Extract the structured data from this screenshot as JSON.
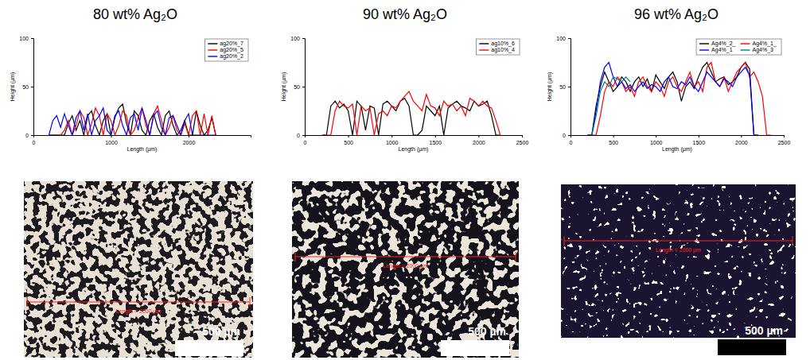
{
  "chart_data": [
    {
      "type": "line",
      "title": "80 wt% Ag₂O",
      "xlabel": "Length (µm)",
      "ylabel": "Height (µm)",
      "x": [
        200,
        250,
        300,
        350,
        400,
        450,
        500,
        550,
        600,
        650,
        700,
        750,
        800,
        850,
        900,
        950,
        1000,
        1050,
        1100,
        1150,
        1200,
        1250,
        1300,
        1350,
        1400,
        1450,
        1500,
        1550,
        1600,
        1650,
        1700,
        1750,
        1800,
        1850,
        1900,
        1950,
        2000,
        2050,
        2100,
        2150,
        2200,
        2250,
        2300,
        2350
      ],
      "series": [
        {
          "name": "ag20%_7",
          "color": "#000000",
          "values": [
            0,
            0,
            0,
            0,
            0,
            12,
            20,
            5,
            15,
            0,
            20,
            25,
            10,
            0,
            15,
            22,
            0,
            18,
            28,
            32,
            12,
            0,
            25,
            20,
            5,
            0,
            15,
            22,
            8,
            0,
            20,
            25,
            10,
            0,
            5,
            15,
            0,
            0,
            25,
            10,
            0,
            5,
            18,
            0
          ]
        },
        {
          "name": "ag20%_5",
          "color": "#ff0000",
          "values": [
            0,
            0,
            0,
            0,
            5,
            15,
            0,
            10,
            25,
            18,
            0,
            12,
            28,
            20,
            0,
            22,
            15,
            0,
            10,
            25,
            20,
            0,
            5,
            18,
            28,
            10,
            0,
            22,
            30,
            15,
            0,
            8,
            20,
            5,
            0,
            12,
            0,
            20,
            25,
            0,
            22,
            0,
            20,
            0
          ]
        },
        {
          "name": "ag20%_2",
          "color": "#0000ff",
          "values": [
            0,
            15,
            20,
            8,
            22,
            10,
            0,
            18,
            25,
            5,
            22,
            0,
            15,
            20,
            28,
            5,
            0,
            20,
            25,
            10,
            0,
            18,
            22,
            5,
            28,
            15,
            0,
            20,
            25,
            8,
            0,
            18,
            20,
            10,
            0,
            15,
            22,
            0,
            0,
            0,
            0,
            0,
            0,
            0
          ]
        }
      ],
      "xlim": [
        0,
        2800
      ],
      "xticks": [
        0,
        1000,
        2000
      ],
      "ylim": [
        0,
        100
      ],
      "yticks": [
        0,
        50,
        100
      ],
      "legend": "upper right"
    },
    {
      "type": "line",
      "title": "90 wt% Ag₂O",
      "xlabel": "Length (µm)",
      "ylabel": "Height (µm)",
      "x": [
        200,
        250,
        300,
        350,
        400,
        450,
        500,
        550,
        600,
        650,
        700,
        750,
        800,
        850,
        900,
        950,
        1000,
        1050,
        1100,
        1150,
        1200,
        1250,
        1300,
        1350,
        1400,
        1450,
        1500,
        1550,
        1600,
        1650,
        1700,
        1750,
        1800,
        1850,
        1900,
        1950,
        2000,
        2050,
        2100,
        2150,
        2200,
        2250
      ],
      "series": [
        {
          "name": "ag10%_6",
          "color": "#000000",
          "values": [
            0,
            0,
            30,
            35,
            28,
            32,
            25,
            0,
            35,
            30,
            5,
            30,
            28,
            0,
            32,
            35,
            30,
            25,
            35,
            38,
            30,
            0,
            0,
            5,
            30,
            25,
            20,
            30,
            0,
            28,
            32,
            35,
            30,
            28,
            25,
            35,
            30,
            32,
            35,
            20,
            0,
            0
          ]
        },
        {
          "name": "ag10%_4",
          "color": "#ff0000",
          "values": [
            0,
            0,
            0,
            25,
            35,
            30,
            28,
            32,
            0,
            30,
            25,
            28,
            0,
            22,
            25,
            20,
            30,
            28,
            35,
            40,
            45,
            35,
            30,
            25,
            42,
            30,
            28,
            20,
            35,
            30,
            32,
            25,
            30,
            20,
            38,
            35,
            30,
            35,
            30,
            28,
            15,
            0
          ]
        }
      ],
      "xlim": [
        0,
        2500
      ],
      "xticks": [
        0,
        500,
        1000,
        1500,
        2000,
        2500
      ],
      "ylim": [
        0,
        100
      ],
      "yticks": [
        0,
        50,
        100
      ],
      "legend": "upper right"
    },
    {
      "type": "line",
      "title": "96 wt% Ag₂O",
      "xlabel": "Length (µm)",
      "ylabel": "Height (µm)",
      "x": [
        200,
        250,
        300,
        350,
        400,
        450,
        500,
        550,
        600,
        650,
        700,
        750,
        800,
        850,
        900,
        950,
        1000,
        1050,
        1100,
        1150,
        1200,
        1250,
        1300,
        1350,
        1400,
        1450,
        1500,
        1550,
        1600,
        1650,
        1700,
        1750,
        1800,
        1850,
        1900,
        1950,
        2000,
        2050,
        2100,
        2150,
        2200,
        2250,
        2300,
        2350
      ],
      "series": [
        {
          "name": "Ag4%_2_",
          "color": "#000000",
          "values": [
            0,
            0,
            30,
            50,
            65,
            55,
            45,
            50,
            60,
            55,
            45,
            55,
            60,
            50,
            58,
            45,
            62,
            55,
            48,
            60,
            65,
            55,
            35,
            50,
            55,
            48,
            60,
            70,
            75,
            65,
            55,
            58,
            60,
            52,
            55,
            60,
            70,
            75,
            68,
            0,
            0,
            null,
            null,
            null
          ]
        },
        {
          "name": "Ag4%_1_",
          "color": "#ff0000",
          "values": [
            0,
            0,
            0,
            20,
            45,
            55,
            50,
            60,
            55,
            45,
            50,
            40,
            55,
            60,
            50,
            45,
            55,
            50,
            40,
            55,
            60,
            50,
            45,
            55,
            65,
            50,
            55,
            45,
            70,
            75,
            55,
            50,
            60,
            45,
            55,
            65,
            70,
            75,
            60,
            65,
            55,
            40,
            0,
            0
          ]
        },
        {
          "name": "Ag4%_1",
          "color": "#0000ff",
          "values": [
            0,
            0,
            25,
            55,
            70,
            75,
            60,
            50,
            55,
            48,
            52,
            45,
            50,
            55,
            48,
            52,
            50,
            45,
            55,
            60,
            50,
            48,
            55,
            52,
            60,
            50,
            45,
            55,
            65,
            60,
            55,
            50,
            58,
            55,
            50,
            60,
            65,
            70,
            62,
            0,
            0,
            null,
            null,
            null
          ]
        },
        {
          "name": "Ag4%_3",
          "color": "#008080",
          "values": [
            0,
            0,
            20,
            45,
            55,
            50,
            60,
            58,
            55,
            60,
            55,
            null,
            null,
            null,
            null,
            null,
            null,
            null,
            null,
            null,
            null,
            null,
            null,
            null,
            null,
            null,
            null,
            null,
            null,
            null,
            null,
            null,
            null,
            null,
            null,
            null,
            null,
            null,
            null,
            null,
            null,
            null,
            null,
            null
          ]
        }
      ],
      "xlim": [
        0,
        2500
      ],
      "xticks": [
        0,
        500,
        1000,
        1500,
        2000,
        2500
      ],
      "ylim": [
        0,
        100
      ],
      "yticks": [
        0,
        50,
        100
      ],
      "legend": "upper right"
    }
  ],
  "micrographs": [
    {
      "length_label": "Length = 2000 µm",
      "scale_bar": "500 µm"
    },
    {
      "length_label": "Length = 2000 µm",
      "scale_bar": "500 µm"
    },
    {
      "length_label": "Length = 2000 µm",
      "scale_bar": "500 µm"
    }
  ]
}
